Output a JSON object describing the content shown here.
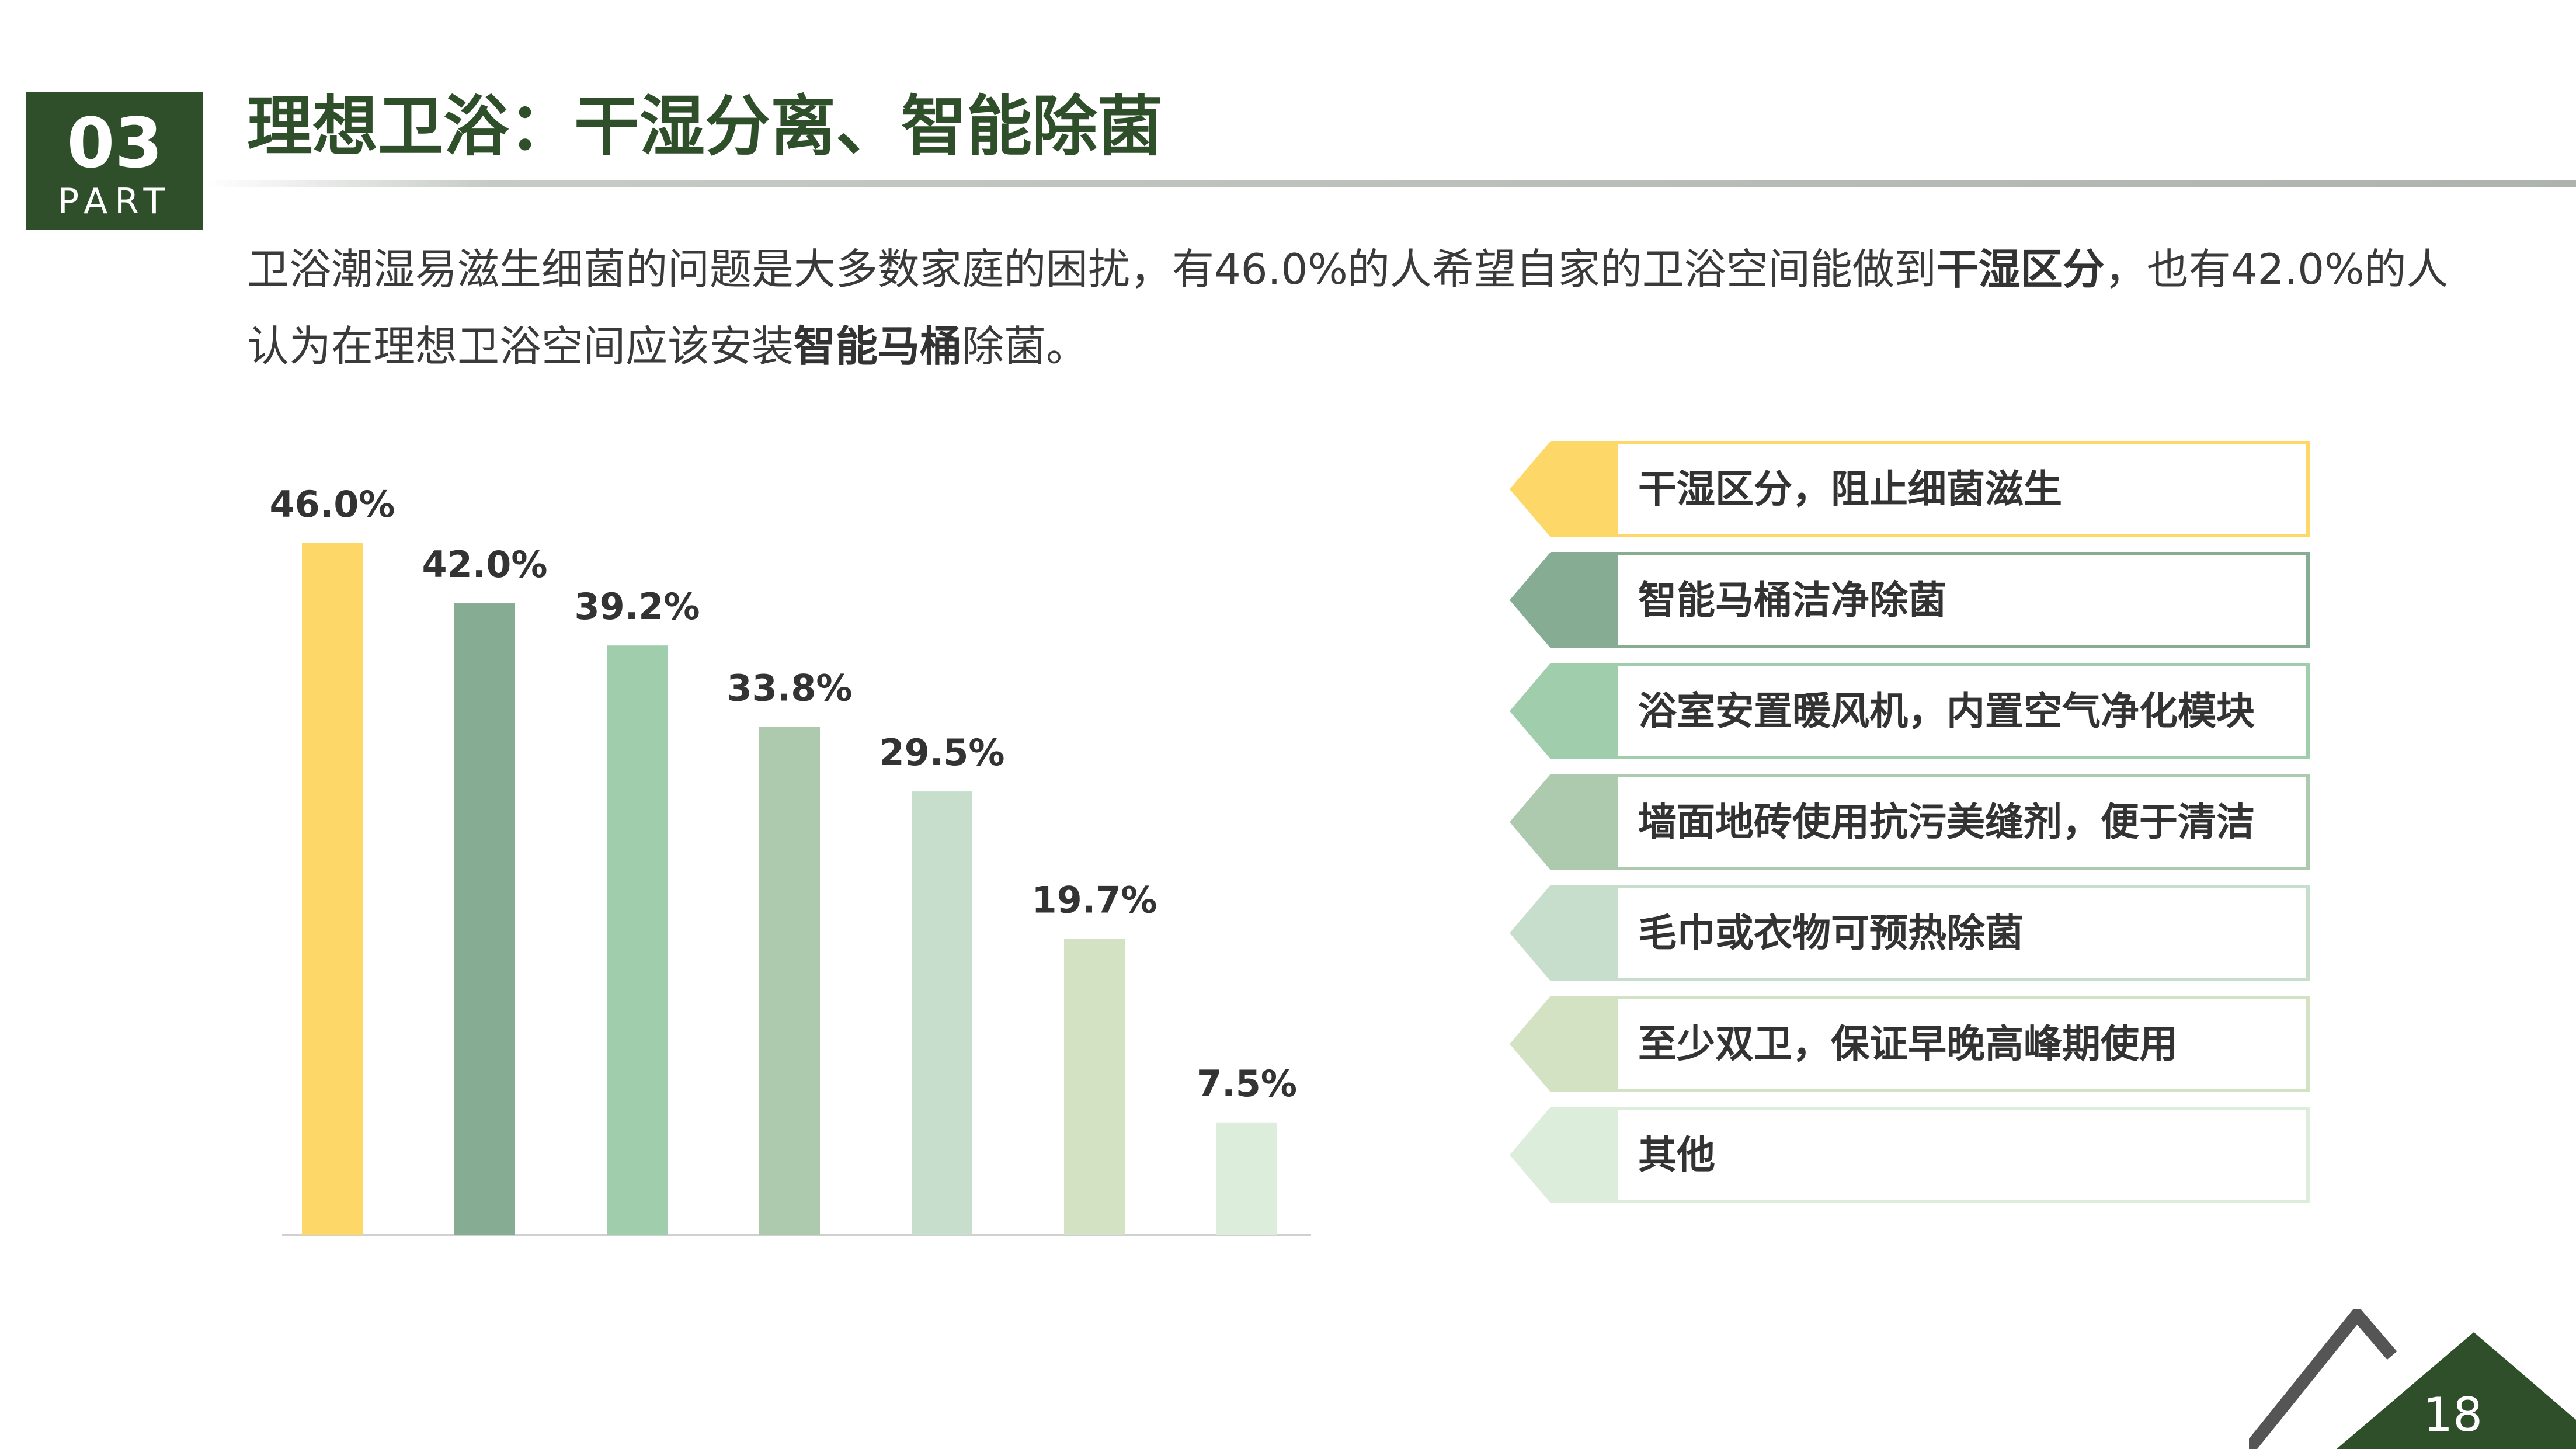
{
  "section": {
    "number": "03",
    "label": "PART"
  },
  "title": "理想卫浴：干湿分离、智能除菌",
  "intro": {
    "part1": "卫浴潮湿易滋生细菌的问题是大多数家庭的困扰，有46.0%的人希望自家的卫浴空间能做到",
    "highlight1": "干湿区分",
    "part2": "，也有42.0%的人认为在理想卫浴空间应该安装",
    "highlight2": "智能马桶",
    "part3": "除菌。"
  },
  "chart_data": {
    "type": "bar",
    "categories": [
      "干湿区分，阻止细菌滋生",
      "智能马桶洁净除菌",
      "浴室安置暖风机，内置空气净化模块",
      "墙面地砖使用抗污美缝剂，便于清洁",
      "毛巾或衣物可预热除菌",
      "至少双卫，保证早晚高峰期使用",
      "其他"
    ],
    "values": [
      46.0,
      42.0,
      39.2,
      33.8,
      29.5,
      19.7,
      7.5
    ],
    "labels": [
      "46.0%",
      "42.0%",
      "39.2%",
      "33.8%",
      "29.5%",
      "19.7%",
      "7.5%"
    ],
    "colors": [
      "#fdd868",
      "#86ad94",
      "#a0cdac",
      "#adcaaf",
      "#c6decb",
      "#d4e2c4",
      "#dceddc"
    ],
    "ylim": [
      0,
      46.0
    ],
    "legend_position": "right"
  },
  "legend": [
    {
      "label": "干湿区分，阻止细菌滋生",
      "color": "#fdd868"
    },
    {
      "label": "智能马桶洁净除菌",
      "color": "#86ad94"
    },
    {
      "label": "浴室安置暖风机，内置空气净化模块",
      "color": "#a0cdac"
    },
    {
      "label": "墙面地砖使用抗污美缝剂，便于清洁",
      "color": "#adcaaf"
    },
    {
      "label": "毛巾或衣物可预热除菌",
      "color": "#c6decb"
    },
    {
      "label": "至少双卫，保证早晚高峰期使用",
      "color": "#d4e2c4"
    },
    {
      "label": "其他",
      "color": "#dceddc"
    }
  ],
  "page_number": "18",
  "colors": {
    "brand_green": "#2e4f2a",
    "text": "#333333",
    "corner_outline": "#555555"
  }
}
